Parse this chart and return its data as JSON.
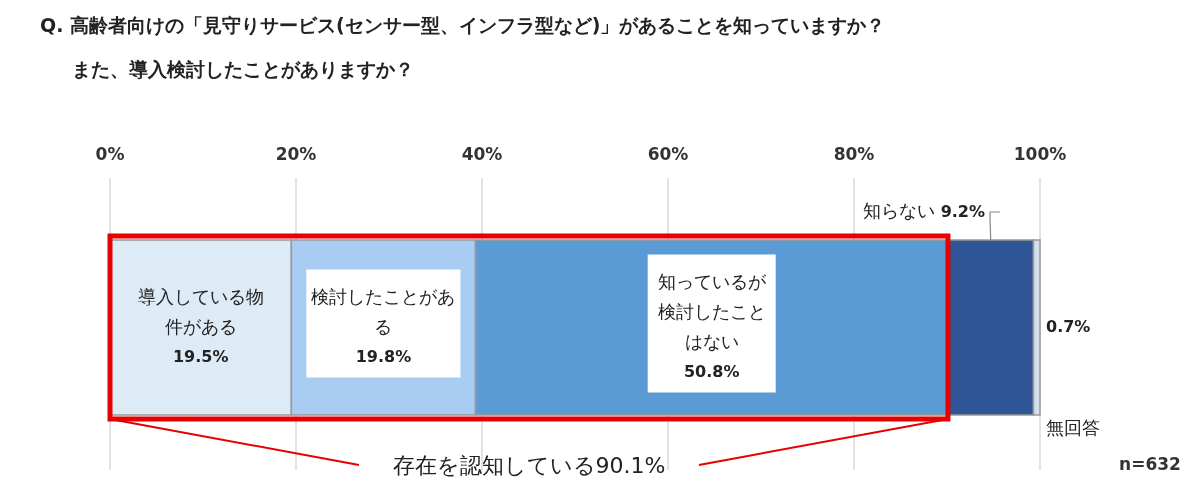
{
  "chart_data": {
    "type": "bar",
    "orientation": "horizontal",
    "stacked": true,
    "title": "Q. 高齢者向けの「見守りサービス(センサー型、インフラ型など)」があることを知っていますか？",
    "subtitle": "また、導入検討したことがありますか？",
    "categories": [
      null
    ],
    "series": [
      {
        "name": "導入している物件がある",
        "color": "#ddebf7",
        "values": [
          19.5
        ],
        "value_labels": [
          "19.5%"
        ]
      },
      {
        "name": "検討したことがある",
        "color": "#a9cdf2",
        "values": [
          19.8
        ],
        "value_labels": [
          "19.8%"
        ]
      },
      {
        "name": "知っているが検討したことはない",
        "color": "#5b9bd5",
        "values": [
          50.8
        ],
        "value_labels": [
          "50.8%"
        ]
      },
      {
        "name": "知らない",
        "color": "#2f5597",
        "values": [
          9.2
        ],
        "value_labels": [
          "9.2%"
        ]
      },
      {
        "name": "無回答",
        "color": "#d6e0ec",
        "values": [
          0.7
        ],
        "value_labels": [
          "0.7%"
        ]
      }
    ],
    "xlim": [
      0,
      100
    ],
    "xticks": [
      {
        "value": 0,
        "label": "0%"
      },
      {
        "value": 20,
        "label": "20%"
      },
      {
        "value": 40,
        "label": "40%"
      },
      {
        "value": 60,
        "label": "60%"
      },
      {
        "value": 80,
        "label": "80%"
      },
      {
        "value": 100,
        "label": "100%"
      }
    ],
    "grid": "x",
    "annotations": [
      "存在を認知している90.1%",
      "n=632"
    ]
  }
}
